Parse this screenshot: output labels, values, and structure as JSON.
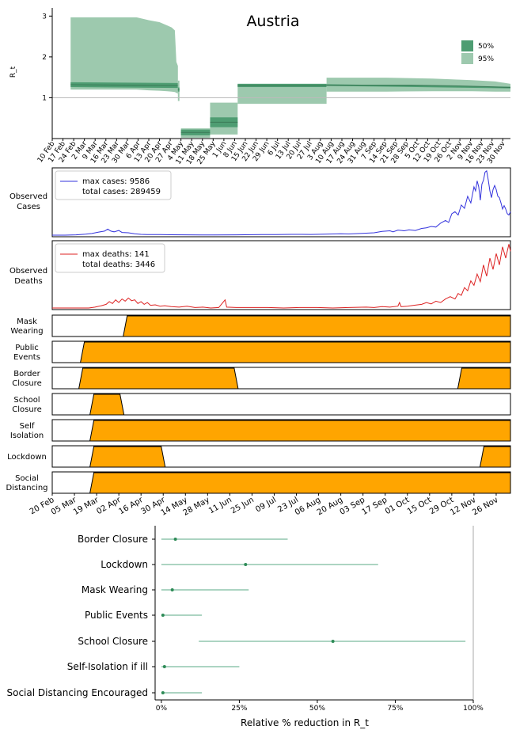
{
  "chart_data": [
    {
      "type": "area",
      "title": "Austria",
      "ylabel": "R_t",
      "ylim": [
        0,
        3.2
      ],
      "yticks": [
        1,
        2,
        3
      ],
      "reference_line": 1,
      "legend": {
        "placement": "top-right",
        "entries": [
          "50%",
          "95%"
        ]
      },
      "colors": {
        "inner": "#4e9d72",
        "outer": "#9dc9ae",
        "ref": "#bbbbbb"
      },
      "date_range": [
        "2020-02-10",
        "2020-12-05"
      ],
      "x_tick_labels": [
        "10 Feb",
        "17 Feb",
        "24 Feb",
        "2 Mar",
        "9 Mar",
        "16 Mar",
        "23 Mar",
        "30 Mar",
        "6 Apr",
        "13 Apr",
        "20 Apr",
        "27 Apr",
        "4 May",
        "11 May",
        "18 May",
        "25 May",
        "1 Jun",
        "8 Jun",
        "15 Jun",
        "22 Jun",
        "29 Jun",
        "6 Jul",
        "13 Jul",
        "20 Jul",
        "27 Jul",
        "3 Aug",
        "10 Aug",
        "17 Aug",
        "24 Aug",
        "31 Aug",
        "7 Sep",
        "14 Sep",
        "21 Sep",
        "28 Sep",
        "5 Oct",
        "12 Oct",
        "19 Oct",
        "26 Oct",
        "2 Nov",
        "9 Nov",
        "16 Nov",
        "23 Nov",
        "30 Nov"
      ],
      "segments": [
        {
          "start": "2020-02-22",
          "end": "2020-05-02",
          "median": [
            [
              "2020-02-22",
              1.32
            ],
            [
              "2020-05-02",
              1.3
            ]
          ],
          "band50": [
            [
              "2020-02-22",
              1.26,
              1.38
            ],
            [
              "2020-05-02",
              1.24,
              1.36
            ]
          ],
          "band95": [
            [
              "2020-02-22",
              1.2,
              2.97
            ],
            [
              "2020-04-05",
              1.2,
              2.97
            ],
            [
              "2020-04-13",
              1.18,
              2.9
            ],
            [
              "2020-04-20",
              1.17,
              2.85
            ],
            [
              "2020-04-25",
              1.16,
              2.77
            ],
            [
              "2020-04-28",
              1.15,
              2.72
            ],
            [
              "2020-04-30",
              1.14,
              2.65
            ],
            [
              "2020-05-01",
              1.12,
              1.88
            ],
            [
              "2020-05-02",
              1.1,
              1.78
            ]
          ]
        },
        {
          "start": "2020-05-02",
          "end": "2020-05-03",
          "median": [
            [
              "2020-05-02",
              1.2
            ],
            [
              "2020-05-03",
              1.2
            ]
          ],
          "band50": [
            [
              "2020-05-02",
              1.15,
              1.25
            ],
            [
              "2020-05-03",
              1.15,
              1.25
            ]
          ],
          "band95": [
            [
              "2020-05-02",
              0.92,
              1.42
            ],
            [
              "2020-05-03",
              0.92,
              1.42
            ]
          ]
        },
        {
          "start": "2020-05-04",
          "end": "2020-05-23",
          "median": [
            [
              "2020-05-04",
              0.15
            ],
            [
              "2020-05-23",
              0.15
            ]
          ],
          "band50": [
            [
              "2020-05-04",
              0.08,
              0.22
            ],
            [
              "2020-05-23",
              0.08,
              0.22
            ]
          ],
          "band95": [
            [
              "2020-05-04",
              0.02,
              0.25
            ],
            [
              "2020-05-23",
              0.02,
              0.25
            ]
          ]
        },
        {
          "start": "2020-05-23",
          "end": "2020-06-10",
          "median": [
            [
              "2020-05-23",
              0.4
            ],
            [
              "2020-06-10",
              0.4
            ]
          ],
          "band50": [
            [
              "2020-05-23",
              0.28,
              0.52
            ],
            [
              "2020-06-10",
              0.28,
              0.52
            ]
          ],
          "band95": [
            [
              "2020-05-23",
              0.1,
              0.88
            ],
            [
              "2020-06-10",
              0.1,
              0.88
            ]
          ]
        },
        {
          "start": "2020-06-10",
          "end": "2020-08-07",
          "median": [
            [
              "2020-06-10",
              1.3
            ],
            [
              "2020-08-07",
              1.3
            ]
          ],
          "band50": [
            [
              "2020-06-10",
              1.26,
              1.34
            ],
            [
              "2020-08-07",
              1.26,
              1.34
            ]
          ],
          "band95": [
            [
              "2020-06-10",
              0.85,
              1.34
            ],
            [
              "2020-08-07",
              0.85,
              1.34
            ]
          ]
        },
        {
          "start": "2020-08-07",
          "end": "2020-12-05",
          "median": [
            [
              "2020-08-07",
              1.31
            ],
            [
              "2020-10-01",
              1.31
            ],
            [
              "2020-11-01",
              1.29
            ],
            [
              "2020-11-20",
              1.27
            ],
            [
              "2020-12-05",
              1.25
            ]
          ],
          "band50": [
            [
              "2020-08-07",
              1.29,
              1.33
            ],
            [
              "2020-12-05",
              1.23,
              1.27
            ]
          ],
          "band95": [
            [
              "2020-08-07",
              1.15,
              1.49
            ],
            [
              "2020-09-15",
              1.15,
              1.49
            ],
            [
              "2020-10-15",
              1.16,
              1.47
            ],
            [
              "2020-11-10",
              1.16,
              1.43
            ],
            [
              "2020-11-25",
              1.15,
              1.4
            ],
            [
              "2020-12-05",
              1.15,
              1.34
            ]
          ]
        }
      ]
    },
    {
      "type": "line",
      "ylabel": "Observed Cases",
      "legend_text": [
        "max cases: 9586",
        "total cases: 289459"
      ],
      "color": "#3333dd",
      "date_range": [
        "2020-02-20",
        "2020-12-05"
      ],
      "ylim": [
        0,
        9800
      ],
      "points": [
        [
          "2020-02-20",
          0
        ],
        [
          "2020-02-28",
          2
        ],
        [
          "2020-03-06",
          50
        ],
        [
          "2020-03-12",
          150
        ],
        [
          "2020-03-16",
          250
        ],
        [
          "2020-03-20",
          450
        ],
        [
          "2020-03-24",
          600
        ],
        [
          "2020-03-26",
          900
        ],
        [
          "2020-03-28",
          600
        ],
        [
          "2020-03-30",
          500
        ],
        [
          "2020-04-02",
          700
        ],
        [
          "2020-04-04",
          400
        ],
        [
          "2020-04-08",
          350
        ],
        [
          "2020-04-12",
          200
        ],
        [
          "2020-04-16",
          120
        ],
        [
          "2020-04-20",
          100
        ],
        [
          "2020-04-28",
          80
        ],
        [
          "2020-05-05",
          60
        ],
        [
          "2020-05-15",
          50
        ],
        [
          "2020-05-25",
          40
        ],
        [
          "2020-06-01",
          40
        ],
        [
          "2020-06-15",
          50
        ],
        [
          "2020-07-01",
          80
        ],
        [
          "2020-07-10",
          100
        ],
        [
          "2020-07-20",
          120
        ],
        [
          "2020-08-01",
          110
        ],
        [
          "2020-08-10",
          150
        ],
        [
          "2020-08-20",
          200
        ],
        [
          "2020-08-25",
          180
        ],
        [
          "2020-09-01",
          250
        ],
        [
          "2020-09-05",
          300
        ],
        [
          "2020-09-10",
          350
        ],
        [
          "2020-09-15",
          550
        ],
        [
          "2020-09-20",
          650
        ],
        [
          "2020-09-22",
          500
        ],
        [
          "2020-09-25",
          750
        ],
        [
          "2020-09-29",
          650
        ],
        [
          "2020-10-02",
          800
        ],
        [
          "2020-10-06",
          700
        ],
        [
          "2020-10-10",
          1000
        ],
        [
          "2020-10-13",
          1100
        ],
        [
          "2020-10-16",
          1300
        ],
        [
          "2020-10-19",
          1200
        ],
        [
          "2020-10-22",
          1800
        ],
        [
          "2020-10-25",
          2200
        ],
        [
          "2020-10-27",
          1900
        ],
        [
          "2020-10-29",
          3200
        ],
        [
          "2020-10-31",
          3500
        ],
        [
          "2020-11-02",
          3000
        ],
        [
          "2020-11-04",
          4500
        ],
        [
          "2020-11-06",
          4000
        ],
        [
          "2020-11-08",
          5800
        ],
        [
          "2020-11-10",
          4800
        ],
        [
          "2020-11-12",
          7200
        ],
        [
          "2020-11-13",
          6600
        ],
        [
          "2020-11-14",
          8100
        ],
        [
          "2020-11-15",
          7200
        ],
        [
          "2020-11-16",
          5200
        ],
        [
          "2020-11-17",
          7600
        ],
        [
          "2020-11-18",
          8200
        ],
        [
          "2020-11-19",
          9400
        ],
        [
          "2020-11-20",
          9586
        ],
        [
          "2020-11-21",
          8200
        ],
        [
          "2020-11-22",
          6600
        ],
        [
          "2020-11-23",
          5600
        ],
        [
          "2020-11-24",
          6800
        ],
        [
          "2020-11-25",
          7400
        ],
        [
          "2020-11-26",
          6800
        ],
        [
          "2020-11-27",
          5800
        ],
        [
          "2020-11-28",
          5600
        ],
        [
          "2020-11-29",
          4800
        ],
        [
          "2020-11-30",
          3900
        ],
        [
          "2020-12-01",
          4400
        ],
        [
          "2020-12-02",
          3900
        ],
        [
          "2020-12-03",
          3200
        ],
        [
          "2020-12-04",
          3000
        ],
        [
          "2020-12-05",
          3500
        ]
      ]
    },
    {
      "type": "line",
      "ylabel": "Observed Deaths",
      "legend_text": [
        "max deaths: 141",
        "total deaths: 3446"
      ],
      "color": "#dd2222",
      "date_range": [
        "2020-02-20",
        "2020-12-05"
      ],
      "ylim": [
        0,
        145
      ],
      "points": [
        [
          "2020-02-20",
          0
        ],
        [
          "2020-03-14",
          0
        ],
        [
          "2020-03-18",
          2
        ],
        [
          "2020-03-22",
          5
        ],
        [
          "2020-03-25",
          8
        ],
        [
          "2020-03-27",
          14
        ],
        [
          "2020-03-29",
          10
        ],
        [
          "2020-03-31",
          18
        ],
        [
          "2020-04-02",
          12
        ],
        [
          "2020-04-04",
          20
        ],
        [
          "2020-04-06",
          15
        ],
        [
          "2020-04-08",
          22
        ],
        [
          "2020-04-10",
          16
        ],
        [
          "2020-04-12",
          18
        ],
        [
          "2020-04-14",
          10
        ],
        [
          "2020-04-16",
          14
        ],
        [
          "2020-04-18",
          8
        ],
        [
          "2020-04-20",
          12
        ],
        [
          "2020-04-22",
          6
        ],
        [
          "2020-04-25",
          7
        ],
        [
          "2020-04-28",
          4
        ],
        [
          "2020-05-01",
          5
        ],
        [
          "2020-05-05",
          3
        ],
        [
          "2020-05-10",
          2
        ],
        [
          "2020-05-15",
          4
        ],
        [
          "2020-05-20",
          1
        ],
        [
          "2020-05-25",
          2
        ],
        [
          "2020-05-30",
          0
        ],
        [
          "2020-06-04",
          1
        ],
        [
          "2020-06-08",
          18
        ],
        [
          "2020-06-09",
          2
        ],
        [
          "2020-06-15",
          1
        ],
        [
          "2020-06-25",
          1
        ],
        [
          "2020-07-05",
          1
        ],
        [
          "2020-07-15",
          0
        ],
        [
          "2020-07-25",
          1
        ],
        [
          "2020-08-05",
          1
        ],
        [
          "2020-08-15",
          0
        ],
        [
          "2020-08-25",
          1
        ],
        [
          "2020-09-05",
          2
        ],
        [
          "2020-09-10",
          1
        ],
        [
          "2020-09-15",
          3
        ],
        [
          "2020-09-20",
          2
        ],
        [
          "2020-09-25",
          4
        ],
        [
          "2020-09-26",
          12
        ],
        [
          "2020-09-27",
          3
        ],
        [
          "2020-10-01",
          4
        ],
        [
          "2020-10-05",
          6
        ],
        [
          "2020-10-10",
          8
        ],
        [
          "2020-10-13",
          12
        ],
        [
          "2020-10-16",
          9
        ],
        [
          "2020-10-19",
          15
        ],
        [
          "2020-10-22",
          12
        ],
        [
          "2020-10-25",
          20
        ],
        [
          "2020-10-28",
          25
        ],
        [
          "2020-10-31",
          20
        ],
        [
          "2020-11-02",
          32
        ],
        [
          "2020-11-04",
          28
        ],
        [
          "2020-11-06",
          45
        ],
        [
          "2020-11-08",
          38
        ],
        [
          "2020-11-10",
          60
        ],
        [
          "2020-11-12",
          50
        ],
        [
          "2020-11-14",
          75
        ],
        [
          "2020-11-16",
          58
        ],
        [
          "2020-11-18",
          95
        ],
        [
          "2020-11-20",
          70
        ],
        [
          "2020-11-22",
          110
        ],
        [
          "2020-11-24",
          85
        ],
        [
          "2020-11-26",
          120
        ],
        [
          "2020-11-28",
          95
        ],
        [
          "2020-11-30",
          135
        ],
        [
          "2020-12-02",
          110
        ],
        [
          "2020-12-04",
          141
        ],
        [
          "2020-12-05",
          125
        ]
      ]
    },
    {
      "type": "area",
      "fill_color": "#ffa500",
      "date_range": [
        "2020-02-20",
        "2020-12-05"
      ],
      "x_tick_labels": [
        "20 Feb",
        "05 Mar",
        "19 Mar",
        "02 Apr",
        "16 Apr",
        "30 Apr",
        "14 May",
        "28 May",
        "11 Jun",
        "25 Jun",
        "09 Jul",
        "23 Jul",
        "06 Aug",
        "20 Aug",
        "03 Sep",
        "17 Sep",
        "01 Oct",
        "15 Oct",
        "29 Oct",
        "12 Nov",
        "26 Nov"
      ],
      "interventions": [
        {
          "label": "Mask Wearing",
          "periods": [
            [
              "2020-04-06",
              "2020-12-05"
            ]
          ]
        },
        {
          "label": "Public Events",
          "periods": [
            [
              "2020-03-10",
              "2020-12-05"
            ]
          ]
        },
        {
          "label": "Border Closure",
          "periods": [
            [
              "2020-03-09",
              "2020-06-15"
            ],
            [
              "2020-11-03",
              "2020-12-05"
            ]
          ]
        },
        {
          "label": "School Closure",
          "periods": [
            [
              "2020-03-16",
              "2020-04-04"
            ]
          ]
        },
        {
          "label": "Self Isolation",
          "periods": [
            [
              "2020-03-16",
              "2020-12-05"
            ]
          ]
        },
        {
          "label": "Lockdown",
          "periods": [
            [
              "2020-03-16",
              "2020-04-30"
            ],
            [
              "2020-11-17",
              "2020-12-05"
            ]
          ]
        },
        {
          "label": "Social Distancing",
          "periods": [
            [
              "2020-03-16",
              "2020-12-05"
            ]
          ]
        }
      ]
    },
    {
      "type": "scatter",
      "xlabel": "Relative  % reduction in R_t",
      "xlim": [
        -2,
        100
      ],
      "xticks": [
        0,
        25,
        50,
        75,
        100
      ],
      "x_tick_labels": [
        "0%",
        "25%",
        "50%",
        "75%",
        "100%"
      ],
      "color": "#2e8b57",
      "ci_color": "#5aaa85",
      "rows": [
        {
          "label": "Border Closure",
          "median": 4.5,
          "lo": 0,
          "hi": 40.5
        },
        {
          "label": "Lockdown",
          "median": 27,
          "lo": 0,
          "hi": 69.5
        },
        {
          "label": "Mask Wearing",
          "median": 3.5,
          "lo": 0,
          "hi": 28
        },
        {
          "label": "Public Events",
          "median": 0.5,
          "lo": 0,
          "hi": 13
        },
        {
          "label": "School Closure",
          "median": 55,
          "lo": 12,
          "hi": 97.5
        },
        {
          "label": "Self-Isolation  if ill",
          "median": 1.0,
          "lo": 0,
          "hi": 25
        },
        {
          "label": "Social Distancing Encouraged",
          "median": 0.5,
          "lo": 0,
          "hi": 13
        }
      ]
    }
  ]
}
